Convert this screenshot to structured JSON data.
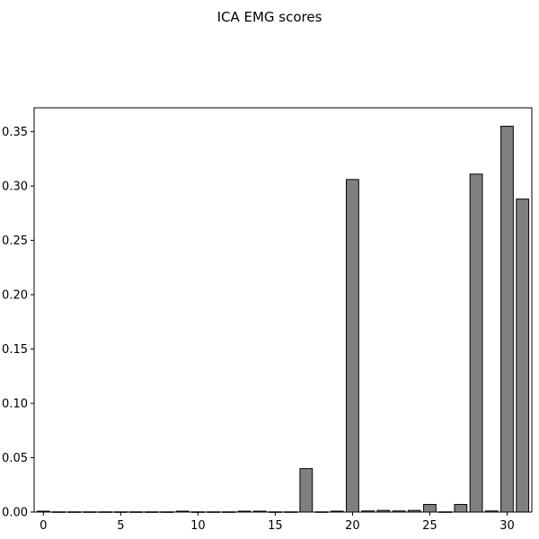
{
  "chart_data": {
    "type": "bar",
    "title": "ICA EMG scores",
    "xlabel": "",
    "ylabel": "",
    "x": [
      0,
      1,
      2,
      3,
      4,
      5,
      6,
      7,
      8,
      9,
      10,
      11,
      12,
      13,
      14,
      15,
      16,
      17,
      18,
      19,
      20,
      21,
      22,
      23,
      24,
      25,
      26,
      27,
      28,
      29,
      30,
      31
    ],
    "values": [
      0.0008,
      0.0002,
      0.0002,
      0.0002,
      0.0002,
      0.0002,
      0.0002,
      0.0002,
      0.0002,
      0.0008,
      0.0002,
      0.0002,
      0.0002,
      0.0008,
      0.0008,
      0.0002,
      0.0002,
      0.04,
      0.0002,
      0.0008,
      0.306,
      0.001,
      0.0015,
      0.001,
      0.0015,
      0.007,
      0.0002,
      0.007,
      0.311,
      0.001,
      0.355,
      0.288
    ],
    "xlim": [
      -0.6,
      31.6
    ],
    "ylim": [
      0,
      0.372
    ],
    "xticks": [
      0,
      5,
      10,
      15,
      20,
      25,
      30
    ],
    "xtick_labels": [
      "0",
      "5",
      "10",
      "15",
      "20",
      "25",
      "30"
    ],
    "yticks": [
      0.0,
      0.05,
      0.1,
      0.15,
      0.2,
      0.25,
      0.3,
      0.35
    ],
    "ytick_labels": [
      "0.00",
      "0.05",
      "0.10",
      "0.15",
      "0.20",
      "0.25",
      "0.30",
      "0.35"
    ],
    "bar_color": "#808080",
    "edge_color": "#000000",
    "grid": false,
    "legend": "none"
  }
}
